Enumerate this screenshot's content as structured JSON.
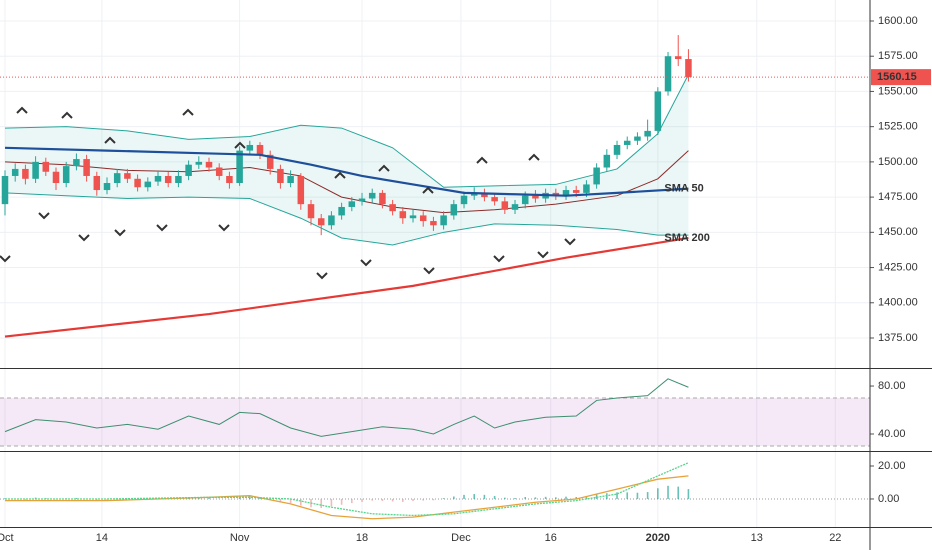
{
  "chart_data": [
    {
      "type": "candlestick",
      "open": [
        1470,
        1490,
        1495,
        1488,
        1500,
        1493,
        1485,
        1497,
        1502,
        1490,
        1480,
        1485,
        1492,
        1488,
        1482,
        1486,
        1490,
        1485,
        1490,
        1498,
        1500,
        1496,
        1490,
        1485,
        1508,
        1512,
        1505,
        1495,
        1485,
        1490,
        1470,
        1460,
        1455,
        1462,
        1468,
        1472,
        1474,
        1478,
        1470,
        1465,
        1460,
        1462,
        1458,
        1455,
        1462,
        1470,
        1476,
        1478,
        1475,
        1472,
        1466,
        1470,
        1476,
        1474,
        1478,
        1476,
        1480,
        1478,
        1484,
        1496,
        1505,
        1512,
        1515,
        1518,
        1522,
        1550,
        1575,
        1573
      ],
      "high": [
        1494,
        1499,
        1498,
        1504,
        1503,
        1496,
        1500,
        1506,
        1505,
        1493,
        1489,
        1495,
        1495,
        1491,
        1489,
        1493,
        1493,
        1494,
        1501,
        1504,
        1503,
        1499,
        1493,
        1511,
        1515,
        1514,
        1508,
        1498,
        1494,
        1492,
        1473,
        1463,
        1465,
        1471,
        1475,
        1478,
        1481,
        1480,
        1473,
        1468,
        1466,
        1465,
        1461,
        1465,
        1473,
        1479,
        1482,
        1481,
        1478,
        1475,
        1473,
        1479,
        1480,
        1481,
        1481,
        1483,
        1483,
        1487,
        1499,
        1509,
        1515,
        1518,
        1521,
        1530,
        1553,
        1578,
        1590,
        1580
      ],
      "low": [
        1462,
        1486,
        1484,
        1485,
        1490,
        1480,
        1482,
        1494,
        1486,
        1476,
        1477,
        1482,
        1485,
        1479,
        1479,
        1483,
        1482,
        1482,
        1487,
        1495,
        1493,
        1487,
        1481,
        1483,
        1505,
        1502,
        1491,
        1481,
        1482,
        1466,
        1455,
        1448,
        1452,
        1459,
        1465,
        1469,
        1471,
        1467,
        1462,
        1456,
        1457,
        1454,
        1451,
        1452,
        1459,
        1467,
        1473,
        1472,
        1469,
        1463,
        1463,
        1467,
        1471,
        1471,
        1473,
        1473,
        1475,
        1475,
        1481,
        1493,
        1502,
        1509,
        1512,
        1515,
        1519,
        1547,
        1568,
        1557
      ],
      "close": [
        1490,
        1495,
        1488,
        1500,
        1493,
        1485,
        1497,
        1502,
        1490,
        1480,
        1485,
        1492,
        1488,
        1482,
        1486,
        1490,
        1485,
        1490,
        1498,
        1500,
        1496,
        1490,
        1485,
        1508,
        1512,
        1505,
        1495,
        1485,
        1490,
        1470,
        1460,
        1455,
        1462,
        1468,
        1472,
        1474,
        1478,
        1470,
        1465,
        1460,
        1462,
        1458,
        1455,
        1462,
        1470,
        1476,
        1478,
        1475,
        1472,
        1466,
        1470,
        1476,
        1474,
        1478,
        1476,
        1480,
        1478,
        1484,
        1496,
        1505,
        1512,
        1515,
        1518,
        1522,
        1550,
        1575,
        1573,
        1560.15
      ],
      "up_color": "#26a69a",
      "down_color": "#ef5350",
      "series": [
        {
          "name": "SMA 50",
          "color": "#1e4f9a",
          "x": [
            0,
            10,
            20,
            25,
            30,
            35,
            40,
            45,
            50,
            55,
            60,
            67
          ],
          "values": [
            1510,
            1508,
            1506,
            1505,
            1498,
            1490,
            1484,
            1478,
            1477,
            1476,
            1478,
            1481
          ]
        },
        {
          "name": "SMA 200",
          "color": "#e53935",
          "x": [
            0,
            20,
            40,
            55,
            67
          ],
          "values": [
            1376,
            1392,
            1412,
            1432,
            1446
          ]
        }
      ],
      "bands": {
        "color": "#26a69a",
        "basis_color": "#8d2b2b",
        "x": [
          0,
          6,
          12,
          18,
          24,
          29,
          33,
          38,
          43,
          48,
          54,
          60,
          64,
          67
        ],
        "upper": [
          1524,
          1525,
          1522,
          1516,
          1518,
          1526,
          1524,
          1510,
          1482,
          1483,
          1484,
          1495,
          1520,
          1562
        ],
        "lower": [
          1478,
          1476,
          1474,
          1475,
          1474,
          1460,
          1446,
          1441,
          1450,
          1456,
          1455,
          1452,
          1448,
          1448
        ],
        "basis": [
          1500,
          1498,
          1494,
          1493,
          1496,
          1490,
          1475,
          1468,
          1464,
          1466,
          1470,
          1476,
          1488,
          1508
        ]
      },
      "ylim": [
        1353.7,
        1614.9
      ],
      "yticks": [
        {
          "value": 1375,
          "label": "1375.00"
        },
        {
          "value": 1400,
          "label": "1400.00"
        },
        {
          "value": 1425,
          "label": "1425.00"
        },
        {
          "value": 1450,
          "label": "1450.00"
        },
        {
          "value": 1475,
          "label": "1475.00"
        },
        {
          "value": 1500,
          "label": "1500.00"
        },
        {
          "value": 1525,
          "label": "1525.00"
        },
        {
          "value": 1550,
          "label": "1550.00"
        },
        {
          "value": 1575,
          "label": "1575.00"
        },
        {
          "value": 1600,
          "label": "1600.00"
        }
      ],
      "xlim": [
        -0.49,
        84.8
      ],
      "xticks": [
        {
          "value": 0,
          "label": "Oct"
        },
        {
          "value": 9.5,
          "label": "14"
        },
        {
          "value": 23,
          "label": "Nov"
        },
        {
          "value": 35,
          "label": "18"
        },
        {
          "value": 44.7,
          "label": "Dec"
        },
        {
          "value": 53.5,
          "label": "16"
        },
        {
          "value": 64,
          "label": "2020"
        },
        {
          "value": 73.7,
          "label": "13"
        },
        {
          "value": 81.4,
          "label": "22"
        }
      ],
      "grid": true
    },
    {
      "type": "line",
      "series": [
        {
          "color": "#3d8f6f",
          "x": [
            0,
            3,
            6,
            9,
            12,
            15,
            18,
            21,
            23,
            25,
            28,
            31,
            34,
            37,
            40,
            42,
            44,
            46,
            48,
            50,
            53,
            56,
            58,
            60,
            63,
            65,
            67
          ],
          "values": [
            42,
            52,
            50,
            45,
            48,
            44,
            55,
            48,
            58,
            57,
            45,
            38,
            42,
            46,
            44,
            40,
            48,
            55,
            45,
            50,
            54,
            55,
            68,
            70,
            72,
            86,
            79
          ]
        }
      ],
      "band": [
        30,
        70
      ],
      "band_color": "#9c27b0",
      "ylim": [
        25,
        94.2
      ],
      "yticks": [
        {
          "value": 80,
          "label": "80.00"
        },
        {
          "value": 40,
          "label": "40.00"
        }
      ]
    },
    {
      "type": "bar",
      "values": [
        0.5,
        0.3,
        -0.5,
        0.8,
        0.5,
        -0.3,
        0.4,
        0.6,
        -0.2,
        -0.8,
        -0.5,
        0.3,
        0.2,
        -0.4,
        -0.2,
        0.3,
        0.1,
        0.4,
        0.8,
        1,
        0.6,
        0.2,
        -0.3,
        1.2,
        1.5,
        0.8,
        -0.5,
        -2,
        -2.5,
        -4,
        -5,
        -5.5,
        -4.5,
        -3.5,
        -2.5,
        -1.8,
        -1,
        -1.2,
        -1.5,
        -1.8,
        -1.2,
        -1,
        -0.8,
        0.5,
        1.5,
        2.5,
        3,
        2.5,
        1.8,
        0.8,
        0.6,
        1.2,
        1,
        1.3,
        1,
        1.4,
        1.2,
        1.6,
        2.8,
        3.5,
        4,
        4,
        3.8,
        4.2,
        6.5,
        8,
        7.5,
        6
      ],
      "up_color": "#26a69a",
      "down_color": "#ef9a9a",
      "series": [
        {
          "color": "#e8a23a",
          "x": [
            0,
            10,
            20,
            24,
            28,
            32,
            36,
            40,
            44,
            48,
            52,
            56,
            60,
            64,
            67
          ],
          "values": [
            -1,
            -1,
            1,
            2,
            -3,
            -10,
            -12,
            -11,
            -8,
            -5,
            -2,
            0,
            6,
            12,
            14
          ]
        },
        {
          "color": "#55d68a",
          "x": [
            0,
            10,
            20,
            24,
            28,
            32,
            36,
            40,
            44,
            48,
            52,
            56,
            60,
            64,
            67
          ],
          "values": [
            0,
            0,
            1,
            1,
            0,
            -5,
            -9,
            -10,
            -9,
            -6,
            -3,
            -1,
            3,
            14,
            22
          ]
        }
      ],
      "ylim": [
        -17,
        28.5
      ],
      "yticks": [
        {
          "value": 20,
          "label": "20.00"
        },
        {
          "value": 0,
          "label": "0.00"
        }
      ]
    }
  ]
}
